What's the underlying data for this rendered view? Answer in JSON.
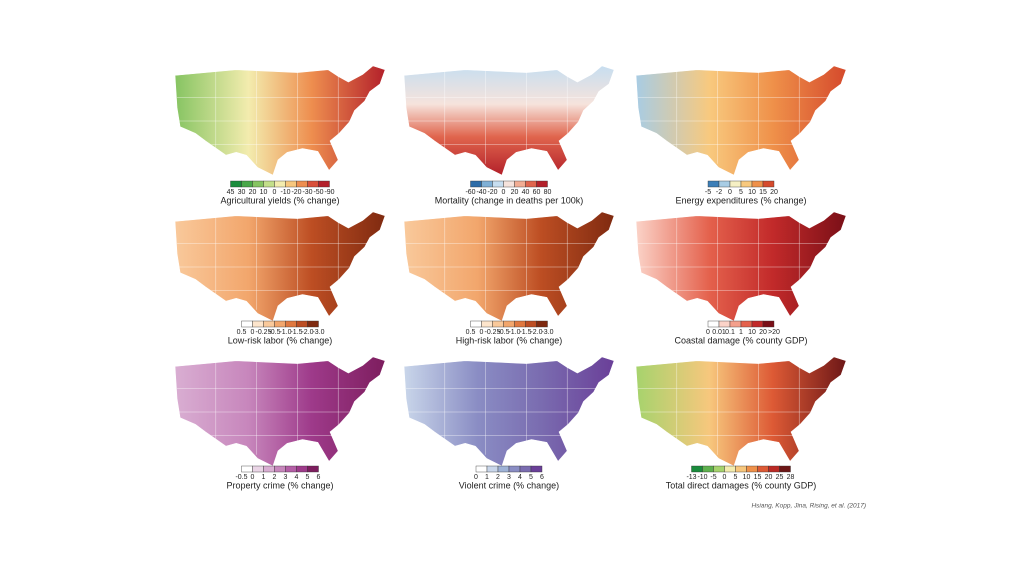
{
  "panels": [
    {
      "title": "Agricultural yields (% change)",
      "legend": {
        "labels": [
          "45",
          "30",
          "20",
          "10",
          "0",
          "-10",
          "-20",
          "-30",
          "-50",
          "-90"
        ],
        "colors": [
          "#1a8c3c",
          "#4aa84a",
          "#86c462",
          "#c3df8a",
          "#f3ecae",
          "#f7c77d",
          "#ee8e4f",
          "#d9503a",
          "#b3202a"
        ]
      }
    },
    {
      "title": "Mortality (change in deaths per 100k)",
      "legend": {
        "labels": [
          "-60",
          "-40",
          "-20",
          "0",
          "20",
          "40",
          "60",
          "80"
        ],
        "colors": [
          "#2d6ca8",
          "#7fb0d6",
          "#c7def0",
          "#f6e3dc",
          "#f2ad93",
          "#e0654d",
          "#b3202a"
        ]
      }
    },
    {
      "title": "Energy expenditures (% change)",
      "legend": {
        "labels": [
          "-5",
          "-2",
          "0",
          "5",
          "10",
          "15",
          "20"
        ],
        "colors": [
          "#3d7fb8",
          "#a8cce4",
          "#f6f0c4",
          "#f8c97e",
          "#ef914a",
          "#d54a2c"
        ]
      }
    },
    {
      "title": "Low-risk labor (% change)",
      "legend": {
        "labels": [
          "0.5",
          "0",
          "-0.25",
          "-0.5",
          "-1.0",
          "-1.5",
          "-2.0",
          "-3.0"
        ],
        "colors": [
          "#ffffff",
          "#fde5cc",
          "#f9c99b",
          "#f2a66c",
          "#e0783f",
          "#bd4e23",
          "#7f2a10"
        ]
      }
    },
    {
      "title": "High-risk labor (% change)",
      "legend": {
        "labels": [
          "0.5",
          "0",
          "-0.25",
          "-0.5",
          "-1.0",
          "-1.5",
          "-2.0",
          "-3.0"
        ],
        "colors": [
          "#ffffff",
          "#fde5cc",
          "#f9c99b",
          "#f2a66c",
          "#e0783f",
          "#bd4e23",
          "#7f2a10"
        ]
      }
    },
    {
      "title": "Coastal damage (% county GDP)",
      "legend": {
        "labels": [
          "0",
          "0.01",
          "0.1",
          "1",
          "10",
          "20",
          ">20"
        ],
        "colors": [
          "#ffffff",
          "#fbd3c8",
          "#f4a08c",
          "#e4614c",
          "#c22a2a",
          "#7a0f17"
        ]
      }
    },
    {
      "title": "Property crime (% change)",
      "legend": {
        "labels": [
          "-0.5",
          "0",
          "1",
          "2",
          "3",
          "4",
          "5",
          "6"
        ],
        "colors": [
          "#ffffff",
          "#ead5e6",
          "#d9aed2",
          "#c786bc",
          "#b45ea6",
          "#9e3a8a",
          "#7d1d5e"
        ]
      }
    },
    {
      "title": "Violent crime (% change)",
      "legend": {
        "labels": [
          "0",
          "1",
          "2",
          "3",
          "4",
          "5",
          "6"
        ],
        "colors": [
          "#ffffff",
          "#c9d6ea",
          "#9eb2d6",
          "#8a8dc4",
          "#7a6cb0",
          "#6a3f98"
        ]
      }
    },
    {
      "title": "Total direct damages (% county GDP)",
      "legend": {
        "labels": [
          "-13",
          "-10",
          "-5",
          "0",
          "5",
          "10",
          "15",
          "20",
          "25",
          "28"
        ],
        "colors": [
          "#1a8c3c",
          "#5fb14e",
          "#a6d36d",
          "#f3ecae",
          "#f7c77d",
          "#ef914a",
          "#dd5a35",
          "#bb2a25",
          "#6d1717"
        ]
      }
    }
  ],
  "credit": "Hsiang, Kopp, Jina, Rising, et al. (2017)"
}
